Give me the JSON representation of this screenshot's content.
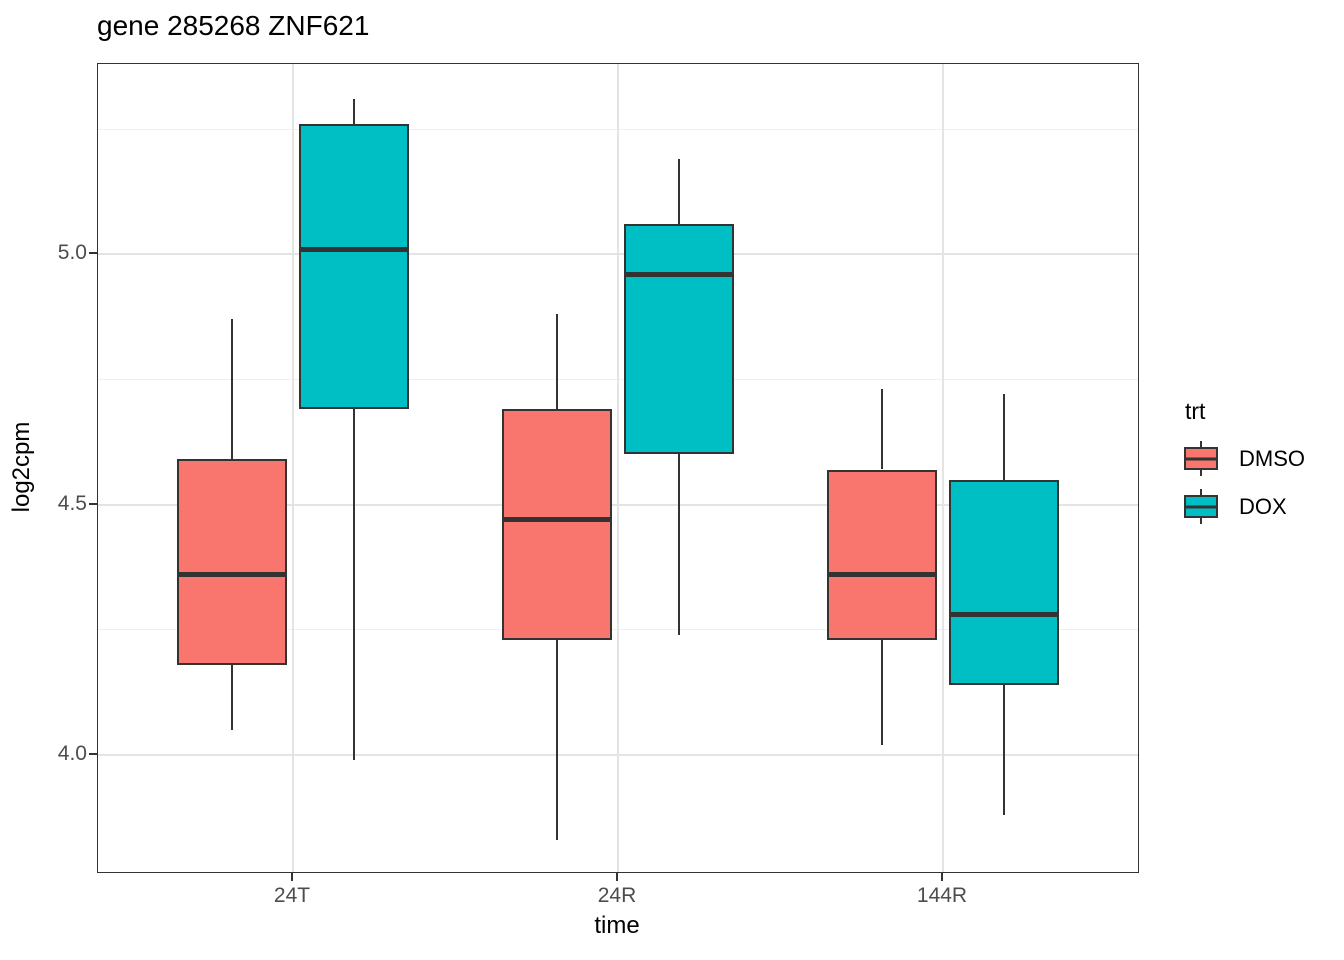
{
  "title": "gene 285268 ZNF621",
  "chart_data": {
    "type": "boxplot",
    "title": "gene 285268 ZNF621",
    "xlabel": "time",
    "ylabel": "log2cpm",
    "categories": [
      "24T",
      "24R",
      "144R"
    ],
    "ylim": [
      3.766,
      5.38
    ],
    "y_major_ticks": [
      5.0,
      4.5,
      4.0
    ],
    "y_minor_ticks": [
      5.25,
      4.75,
      4.25
    ],
    "grid": true,
    "legend": {
      "title": "trt",
      "position": "right",
      "entries": [
        "DMSO",
        "DOX"
      ]
    },
    "series": [
      {
        "name": "DMSO",
        "fill": "#F8766D",
        "boxes": [
          {
            "category": "24T",
            "whisker_low": 4.05,
            "q1": 4.18,
            "median": 4.36,
            "q3": 4.59,
            "whisker_high": 4.87
          },
          {
            "category": "24R",
            "whisker_low": 3.83,
            "q1": 4.23,
            "median": 4.47,
            "q3": 4.69,
            "whisker_high": 4.88
          },
          {
            "category": "144R",
            "whisker_low": 4.02,
            "q1": 4.23,
            "median": 4.36,
            "q3": 4.57,
            "whisker_high": 4.73
          }
        ]
      },
      {
        "name": "DOX",
        "fill": "#00BFC4",
        "boxes": [
          {
            "category": "24T",
            "whisker_low": 3.99,
            "q1": 4.69,
            "median": 5.01,
            "q3": 5.26,
            "whisker_high": 5.31
          },
          {
            "category": "24R",
            "whisker_low": 4.24,
            "q1": 4.6,
            "median": 4.96,
            "q3": 5.06,
            "whisker_high": 5.19
          },
          {
            "category": "144R",
            "whisker_low": 3.88,
            "q1": 4.14,
            "median": 4.28,
            "q3": 4.55,
            "whisker_high": 4.72
          }
        ]
      }
    ],
    "colors": {
      "box_outline": "#333333",
      "grid_major": "#E4E4E4",
      "grid_minor": "#EFEFEF",
      "panel_border": "#333333",
      "tick_label": "#4D4D4D",
      "panel_bg": "#FFFFFF"
    }
  }
}
